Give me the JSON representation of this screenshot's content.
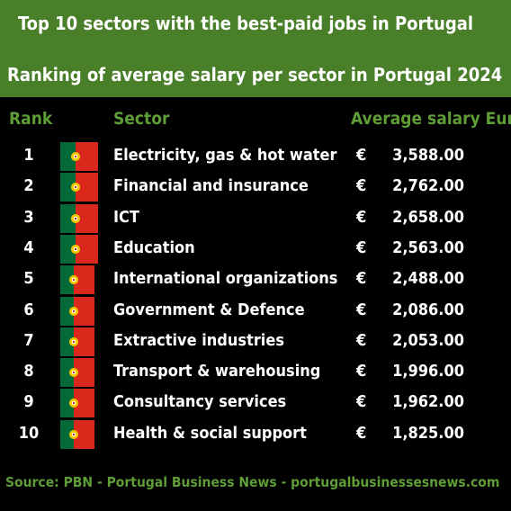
{
  "chart_data": {
    "type": "table",
    "title": "Top 10 sectors with the best-paid jobs in Portugal",
    "subtitle": "Ranking of average salary per sector in Portugal 2024",
    "columns": [
      "Rank",
      "Sector",
      "Average salary Eur"
    ],
    "currency_symbol": "€",
    "rows": [
      {
        "rank": "1",
        "sector": "Electricity, gas & hot water",
        "value": 3588.0,
        "value_text": "3,588.00"
      },
      {
        "rank": "2",
        "sector": "Financial and insurance",
        "value": 2762.0,
        "value_text": "2,762.00"
      },
      {
        "rank": "3",
        "sector": "ICT",
        "value": 2658.0,
        "value_text": "2,658.00"
      },
      {
        "rank": "4",
        "sector": "Education",
        "value": 2563.0,
        "value_text": "2,563.00"
      },
      {
        "rank": "5",
        "sector": "International organizations",
        "value": 2488.0,
        "value_text": "2,488.00"
      },
      {
        "rank": "6",
        "sector": "Government & Defence",
        "value": 2086.0,
        "value_text": "2,086.00"
      },
      {
        "rank": "7",
        "sector": "Extractive industries",
        "value": 2053.0,
        "value_text": "2,053.00"
      },
      {
        "rank": "8",
        "sector": "Transport & warehousing",
        "value": 1996.0,
        "value_text": "1,996.00"
      },
      {
        "rank": "9",
        "sector": "Consultancy services",
        "value": 1962.0,
        "value_text": "1,962.00"
      },
      {
        "rank": "10",
        "sector": "Health & social support",
        "value": 1825.0,
        "value_text": "1,825.00"
      }
    ],
    "source": "Source: PBN - Portugal Business News - portugalbusinessesnews.com"
  },
  "colors": {
    "banner": "#4a7f29",
    "header_text": "#5f9d36",
    "background": "#000000",
    "flag_green": "#046a38",
    "flag_red": "#da291c"
  },
  "icons": {
    "row_icon": "portugal-flag-icon"
  }
}
